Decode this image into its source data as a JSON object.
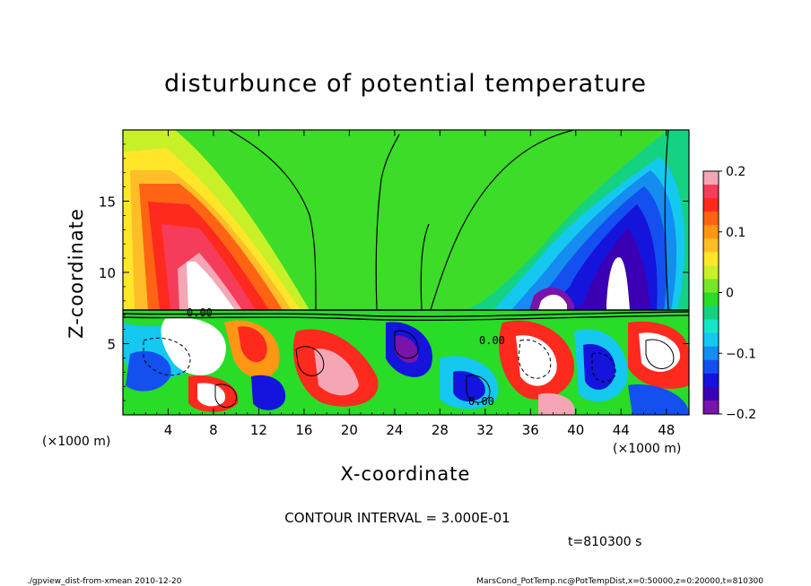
{
  "chart_data": {
    "type": "heatmap",
    "title": "disturbunce of potential temperature",
    "xlabel": "X-coordinate",
    "ylabel": "Z-coordinate",
    "x_unit": "(×1000 m)",
    "z_unit": "(×1000 m)",
    "xlim": [
      0,
      50
    ],
    "zlim": [
      0,
      20
    ],
    "x_ticks": [
      4,
      8,
      12,
      16,
      20,
      24,
      28,
      32,
      36,
      40,
      44,
      48
    ],
    "z_ticks": [
      5,
      10,
      15
    ],
    "colorbar": {
      "ticks": [
        "0.2",
        "0.1",
        "0",
        "−0.1",
        "−0.2"
      ],
      "values": [
        0.2,
        0.1,
        0,
        -0.1,
        -0.2
      ],
      "range": [
        -0.2,
        0.2
      ],
      "colors": [
        "#f4a6b4",
        "#f53c5a",
        "#ff2a1e",
        "#ff6414",
        "#ff9614",
        "#ffbe28",
        "#ffe628",
        "#c8f028",
        "#78e628",
        "#28dc28",
        "#14d282",
        "#14e6c8",
        "#14c8f0",
        "#148cf0",
        "#1450f0",
        "#1414dc",
        "#3c00b4",
        "#7814aa"
      ]
    },
    "contour_interval": "CONTOUR INTERVAL = 3.000E-01",
    "contour_labels": [
      "0.00",
      "0.00",
      "0.00"
    ],
    "features": [
      {
        "kind": "warm anomaly",
        "x_center": 7,
        "z_center": 11,
        "peak": 0.2
      },
      {
        "kind": "cold anomaly",
        "x_center": 43,
        "z_center": 12,
        "peak": -0.2
      },
      {
        "kind": "turbulent layer",
        "z_top": 7.3
      }
    ]
  },
  "time_label": "t=810300 s",
  "footer_left": "./gpview_dist-from-xmean  2010-12-20",
  "footer_right": "MarsCond_PotTemp.nc@PotTempDist,x=0:50000,z=0:20000,t=810300"
}
